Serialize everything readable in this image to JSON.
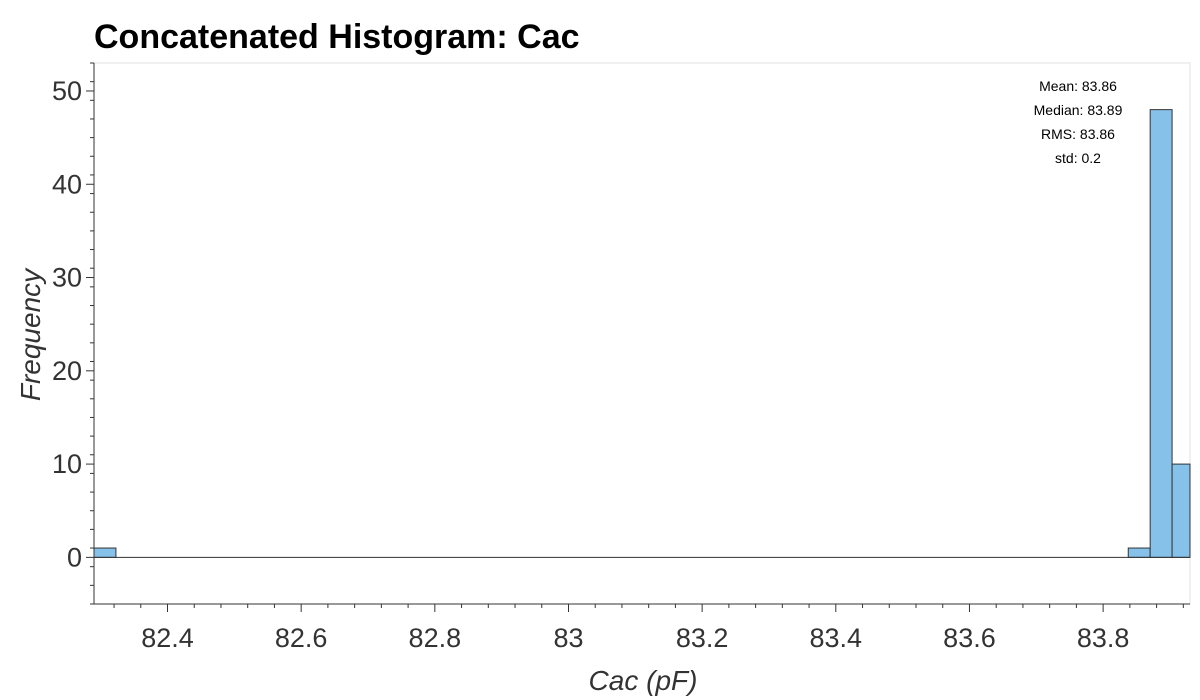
{
  "chart_data": {
    "type": "bar",
    "title": "Concatenated Histogram: Cac",
    "xlabel": "Cac (pF)",
    "ylabel": "Frequency",
    "xlim": [
      82.29,
      83.93
    ],
    "ylim": [
      -5,
      53
    ],
    "x_ticks": [
      82.4,
      82.6,
      82.8,
      83,
      83.2,
      83.4,
      83.6,
      83.8
    ],
    "x_tick_labels": [
      "82.4",
      "82.6",
      "82.8",
      "83",
      "83.2",
      "83.4",
      "83.6",
      "83.8"
    ],
    "y_ticks": [
      0,
      10,
      20,
      30,
      40,
      50
    ],
    "y_tick_labels": [
      "0",
      "10",
      "20",
      "30",
      "40",
      "50"
    ],
    "bin_width": 0.0328,
    "bins": [
      {
        "x0": 82.29,
        "count": 1
      },
      {
        "x0": 83.8376,
        "count": 1
      },
      {
        "x0": 83.8704,
        "count": 48
      },
      {
        "x0": 83.9032,
        "count": 10
      }
    ],
    "bar_color": "#85c1e9",
    "bar_edge_color": "#333333",
    "stats_box": {
      "placement": "top-right",
      "lines": [
        "Mean: 83.86",
        "Median: 83.89",
        "RMS: 83.86",
        "std: 0.2"
      ]
    },
    "grid": false
  }
}
